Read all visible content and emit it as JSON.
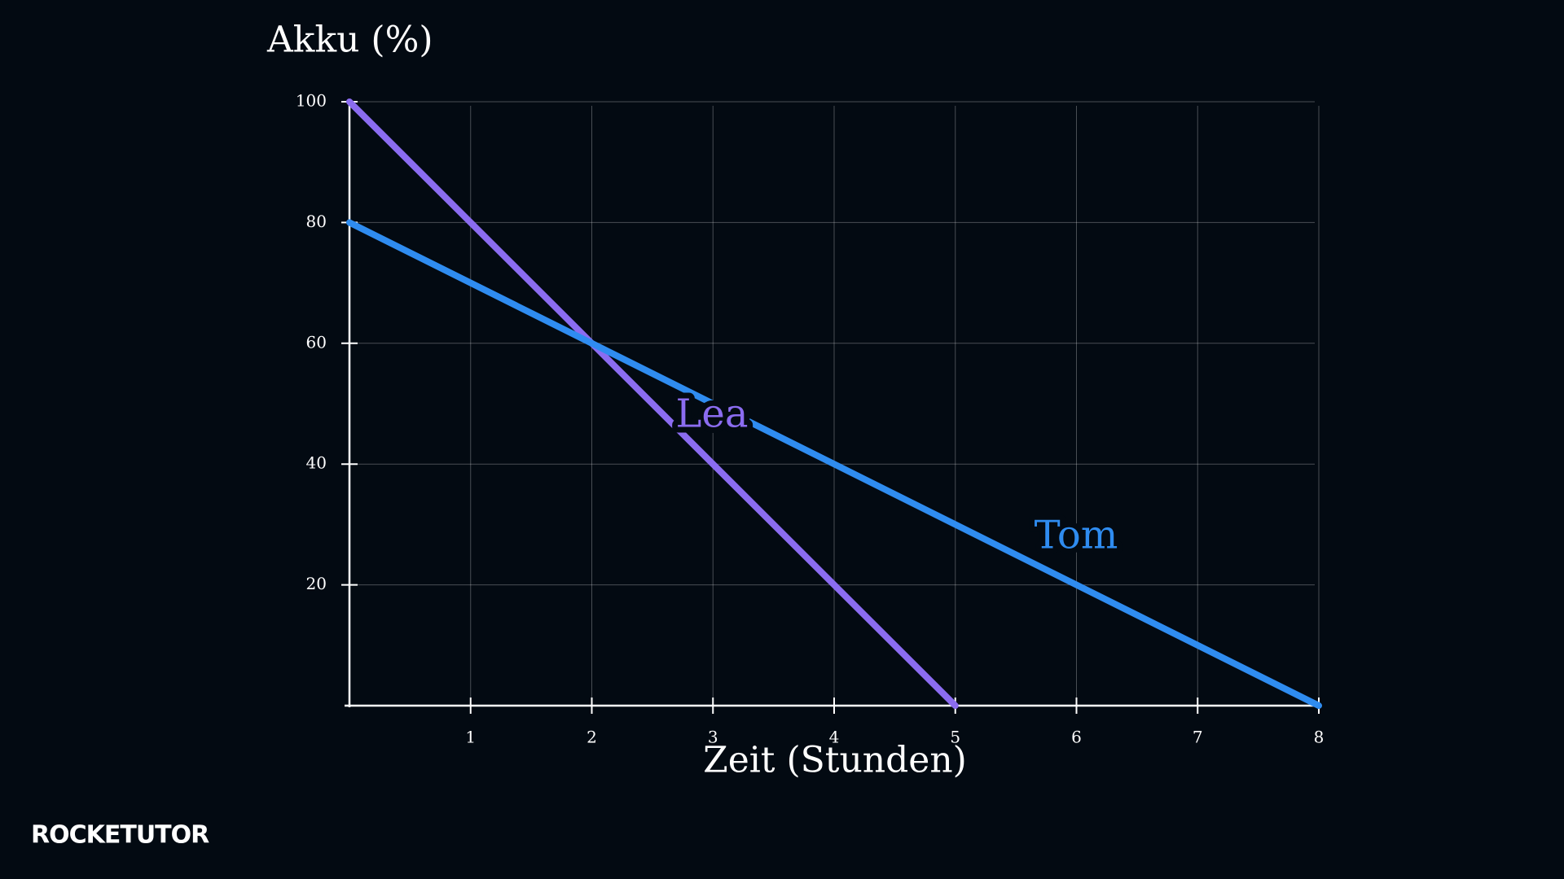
{
  "chart_data": {
    "type": "line",
    "y_label": "Akku (%)",
    "x_label": "Zeit (Stunden)",
    "xlim": [
      0,
      8
    ],
    "ylim": [
      0,
      100
    ],
    "xticks": [
      1,
      2,
      3,
      4,
      5,
      6,
      7,
      8
    ],
    "yticks": [
      20,
      40,
      60,
      80,
      100
    ],
    "grid": true,
    "series": [
      {
        "name": "Lea",
        "color": "#8b6cf0",
        "x": [
          0,
          5
        ],
        "values": [
          100,
          0
        ]
      },
      {
        "name": "Tom",
        "color": "#2f8cf0",
        "x": [
          0,
          8
        ],
        "values": [
          80,
          0
        ]
      }
    ]
  },
  "logo": "ROCKETUTOR"
}
